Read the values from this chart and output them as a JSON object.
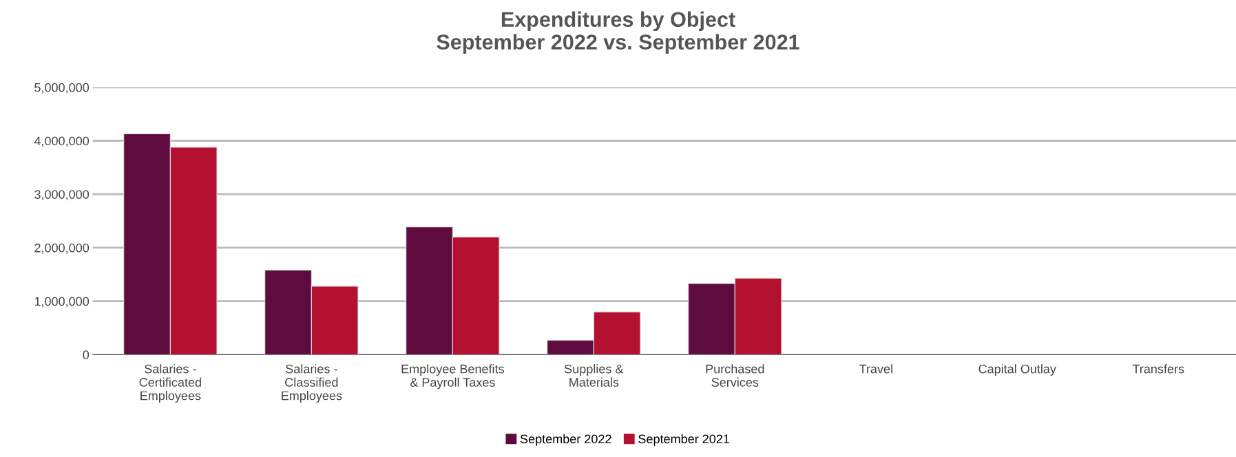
{
  "chart_data": {
    "type": "bar",
    "title": "Expenditures by Object\nSeptember 2022 vs. September 2021",
    "categories": [
      "Salaries -\nCertificated\nEmployees",
      "Salaries -\nClassified\nEmployees",
      "Employee Benefits\n& Payroll Taxes",
      "Supplies &\nMaterials",
      "Purchased\nServices",
      "Travel",
      "Capital Outlay",
      "Transfers"
    ],
    "series": [
      {
        "name": "September 2022",
        "color": "#5e0b40",
        "values": [
          4130000,
          1580000,
          2390000,
          270000,
          1330000,
          0,
          0,
          0
        ]
      },
      {
        "name": "September 2021",
        "color": "#b3112f",
        "values": [
          3880000,
          1280000,
          2200000,
          800000,
          1430000,
          0,
          0,
          0
        ]
      }
    ],
    "ylim": [
      0,
      5000000
    ],
    "yticks": [
      0,
      {
        "value": 1000000,
        "label": "1,000,000"
      },
      {
        "value": 2000000,
        "label": "2,000,000"
      },
      {
        "value": 3000000,
        "label": "3,000,000"
      },
      {
        "value": 4000000,
        "label": "4,000,000"
      },
      {
        "value": 5000000,
        "label": "5,000,000"
      }
    ],
    "grid": "y",
    "legend": "bottom"
  }
}
